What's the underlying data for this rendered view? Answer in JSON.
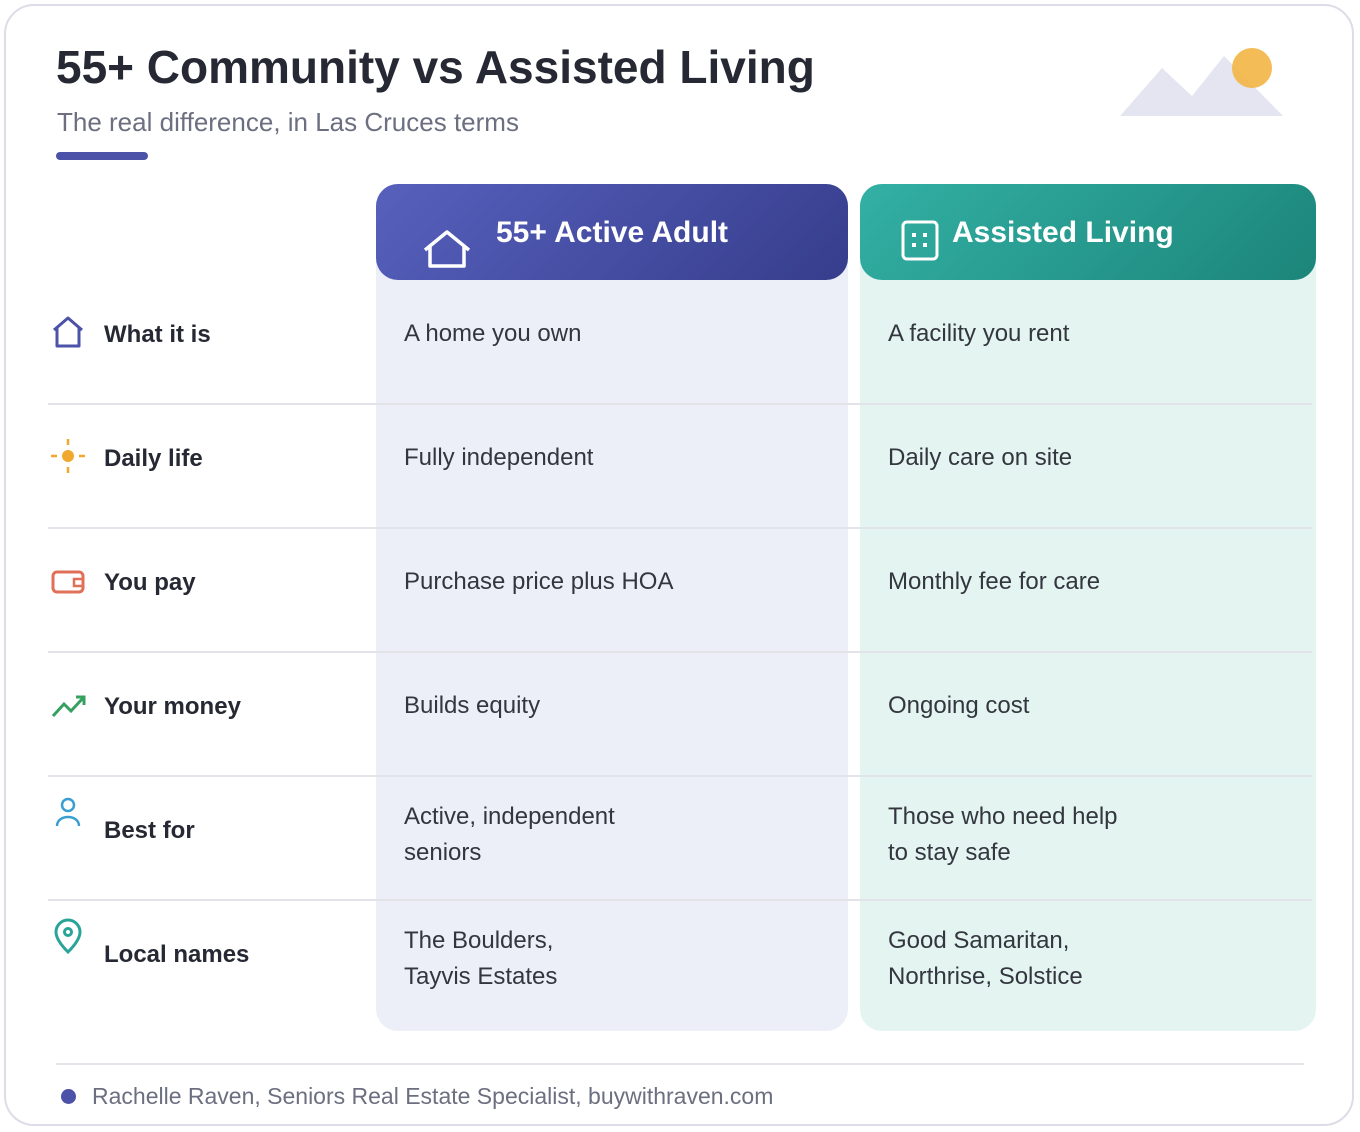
{
  "header": {
    "title": "55+ Community vs Assisted Living",
    "subtitle": "The real difference, in Las Cruces terms"
  },
  "columns": [
    "55+ Active Adult",
    "Assisted Living"
  ],
  "rows": [
    {
      "label": "What it is",
      "cells": [
        [
          "A home you own"
        ],
        [
          "A facility you rent"
        ]
      ]
    },
    {
      "label": "Daily life",
      "cells": [
        [
          "Fully independent"
        ],
        [
          "Daily care on site"
        ]
      ]
    },
    {
      "label": "You pay",
      "cells": [
        [
          "Purchase price plus HOA"
        ],
        [
          "Monthly fee for care"
        ]
      ]
    },
    {
      "label": "Your money",
      "cells": [
        [
          "Builds equity"
        ],
        [
          "Ongoing cost"
        ]
      ]
    },
    {
      "label": "Best for",
      "cells": [
        [
          "Active, independent",
          "seniors"
        ],
        [
          "Those who need help",
          "to stay safe"
        ]
      ]
    },
    {
      "label": "Local names",
      "cells": [
        [
          "The Boulders,",
          "Tayvis Estates"
        ],
        [
          "Good Samaritan,",
          "Northrise, Solstice"
        ]
      ]
    }
  ],
  "footer": "Rachelle Raven, Seniors Real Estate Specialist, buywithraven.com"
}
